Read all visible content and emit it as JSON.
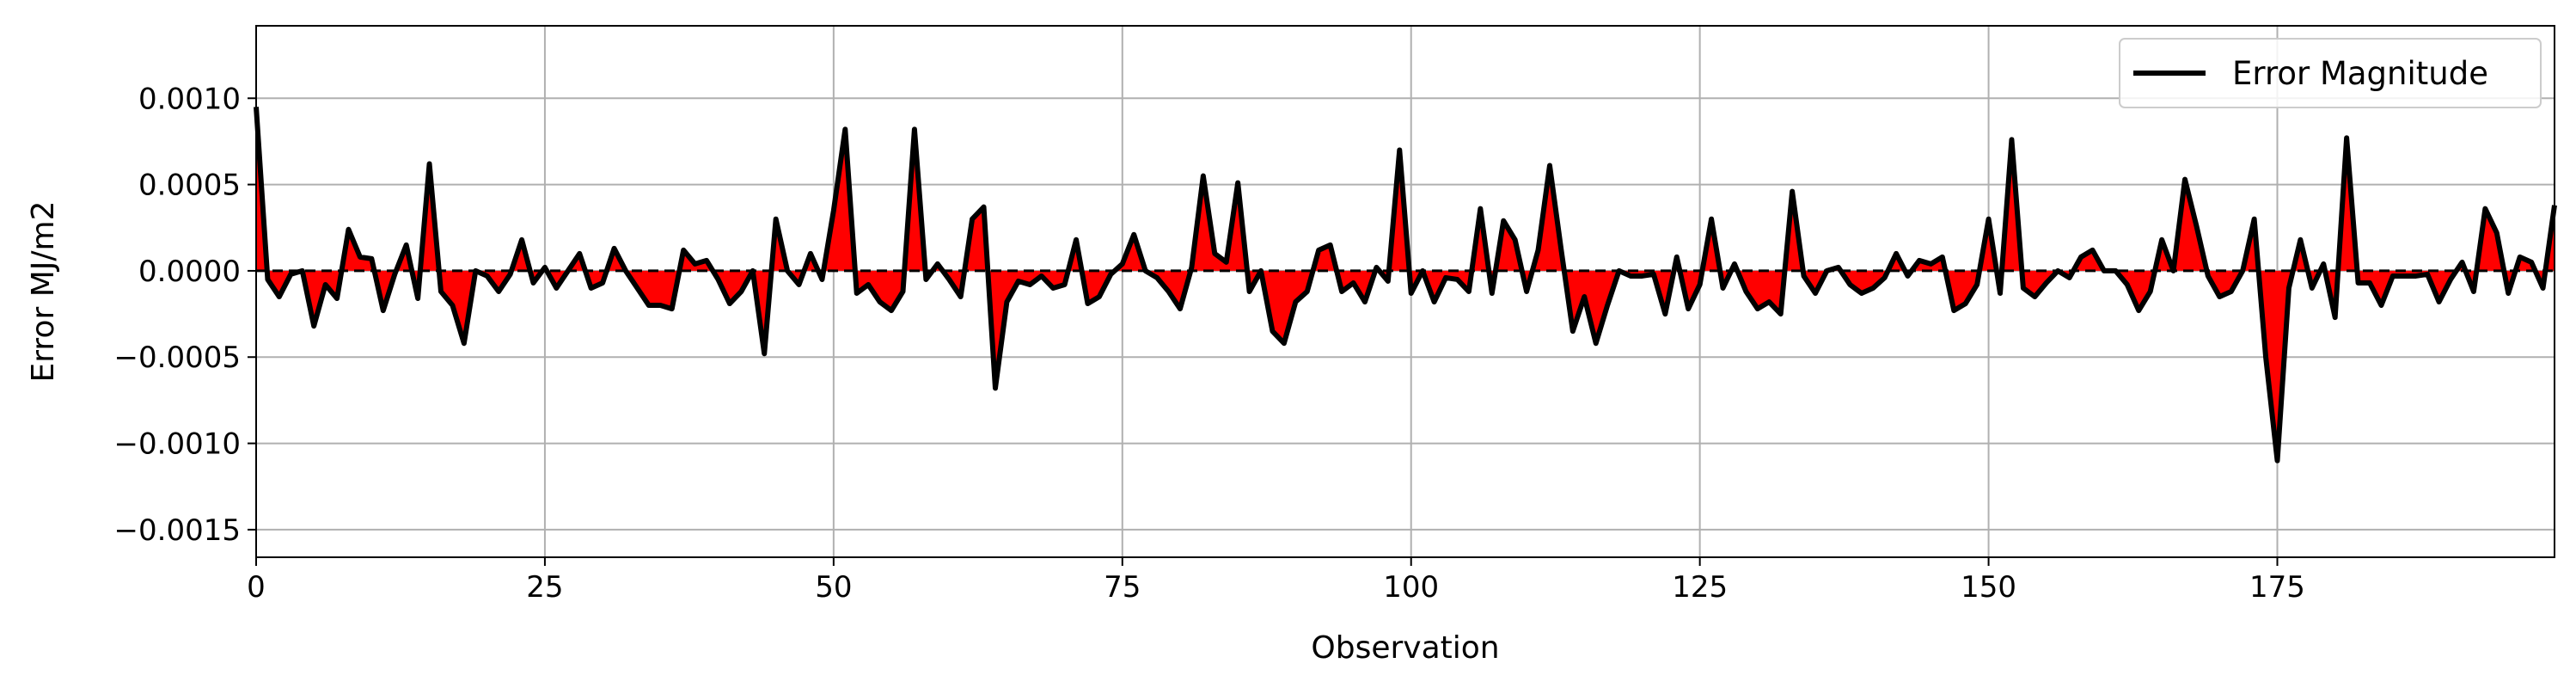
{
  "chart_data": {
    "type": "area",
    "title": "",
    "xlabel": "Observation",
    "ylabel": "Error MJ/m2",
    "xlim": [
      0,
      199
    ],
    "ylim": [
      -0.00166,
      0.00142
    ],
    "xticks": [
      0,
      25,
      50,
      75,
      100,
      125,
      150,
      175
    ],
    "xtick_labels": [
      "0",
      "25",
      "50",
      "75",
      "100",
      "125",
      "150",
      "175"
    ],
    "yticks": [
      0.001,
      0.0005,
      0.0,
      -0.0005,
      -0.001,
      -0.0015
    ],
    "ytick_labels": [
      "0.0010",
      "0.0005",
      "0.0000",
      "−0.0005",
      "−0.0010",
      "−0.0015"
    ],
    "grid": true,
    "legend_position": "top-right",
    "zero_line": "dashed",
    "colors": {
      "line": "#000000",
      "fill": "#ff0000",
      "grid": "#b0b0b0"
    },
    "series": [
      {
        "name": "Error Magnitude",
        "x_start": 0,
        "x_step": 1,
        "values": [
          0.00095,
          -5e-05,
          -0.00015,
          -2e-05,
          0.0,
          -0.00032,
          -8e-05,
          -0.00016,
          0.00024,
          8e-05,
          7e-05,
          -0.00023,
          -2e-05,
          0.00015,
          -0.00016,
          0.00062,
          -0.00012,
          -0.0002,
          -0.00042,
          0.0,
          -3e-05,
          -0.00012,
          -2e-05,
          0.00018,
          -7e-05,
          2e-05,
          -0.0001,
          0.0,
          0.0001,
          -0.0001,
          -7e-05,
          0.00013,
          0.0,
          -0.0001,
          -0.0002,
          -0.0002,
          -0.00022,
          0.00012,
          4e-05,
          6e-05,
          -5e-05,
          -0.00019,
          -0.00012,
          0.0,
          -0.00048,
          0.0003,
          0.0,
          -8e-05,
          0.0001,
          -5e-05,
          0.00035,
          0.00082,
          -0.00013,
          -8e-05,
          -0.00018,
          -0.00023,
          -0.00012,
          0.00082,
          -5e-05,
          4e-05,
          -5e-05,
          -0.00015,
          0.0003,
          0.00037,
          -0.00068,
          -0.00018,
          -6e-05,
          -8e-05,
          -3e-05,
          -0.0001,
          -8e-05,
          0.00018,
          -0.00019,
          -0.00015,
          -2e-05,
          4e-05,
          0.00021,
          0.0,
          -4e-05,
          -0.00012,
          -0.00022,
          2e-05,
          0.00055,
          0.0001,
          5e-05,
          0.00051,
          -0.00012,
          0.0,
          -0.00035,
          -0.00042,
          -0.00018,
          -0.00012,
          0.00012,
          0.00015,
          -0.00012,
          -7e-05,
          -0.00018,
          2e-05,
          -6e-05,
          0.0007,
          -0.00013,
          0.0,
          -0.00018,
          -4e-05,
          -5e-05,
          -0.00012,
          0.00036,
          -0.00013,
          0.00029,
          0.00018,
          -0.00012,
          0.00012,
          0.00061,
          0.00012,
          -0.00035,
          -0.00015,
          -0.00042,
          -0.0002,
          0.0,
          -3e-05,
          -3e-05,
          -2e-05,
          -0.00025,
          8e-05,
          -0.00022,
          -8e-05,
          0.0003,
          -0.0001,
          4e-05,
          -0.00012,
          -0.00022,
          -0.00018,
          -0.00025,
          0.00046,
          -3e-05,
          -0.00013,
          0.0,
          2e-05,
          -8e-05,
          -0.00013,
          -0.0001,
          -4e-05,
          0.0001,
          -3e-05,
          6e-05,
          4e-05,
          8e-05,
          -0.00023,
          -0.00019,
          -8e-05,
          0.0003,
          -0.00013,
          0.00076,
          -0.0001,
          -0.00015,
          -7e-05,
          0.0,
          -4e-05,
          8e-05,
          0.00012,
          0.0,
          0.0,
          -8e-05,
          -0.00023,
          -0.00012,
          0.00018,
          0.0,
          0.00053,
          0.00026,
          -3e-05,
          -0.00015,
          -0.00012,
          0.0,
          0.0003,
          -0.0005,
          -0.0011,
          -0.0001,
          0.00018,
          -0.0001,
          4e-05,
          -0.00027,
          0.00077,
          -7e-05,
          -7e-05,
          -0.0002,
          -3e-05,
          -3e-05,
          -3e-05,
          -2e-05,
          -0.00018,
          -5e-05,
          5e-05,
          -0.00012,
          0.00036,
          0.00022,
          -0.00013,
          8e-05,
          5e-05,
          -0.0001,
          0.00038
        ]
      }
    ]
  }
}
